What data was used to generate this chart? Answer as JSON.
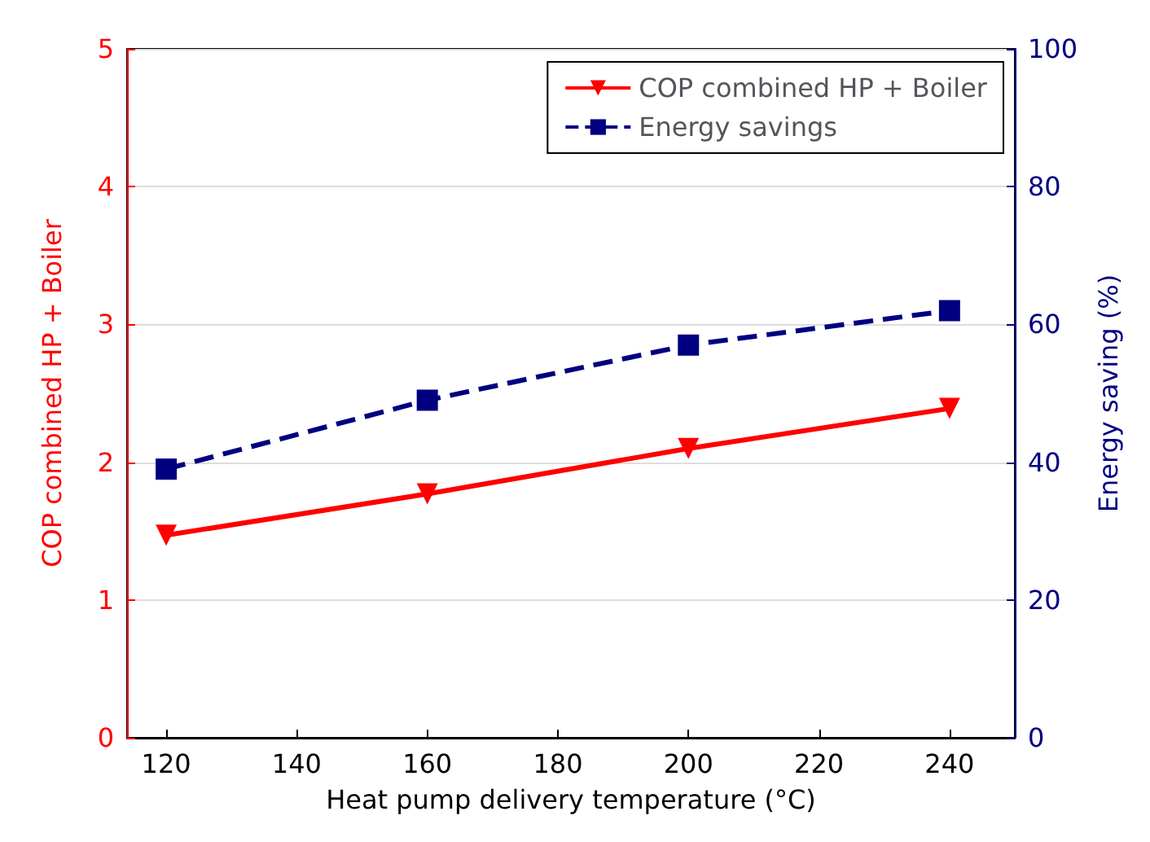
{
  "chart_data": {
    "type": "line",
    "xlabel": "Heat pump delivery temperature (°C)",
    "ylabel": "COP combined HP + Boiler",
    "y2label": "Energy saving (%)",
    "x": [
      120,
      160,
      200,
      240
    ],
    "series": [
      {
        "name": "COP combined HP + Boiler",
        "color": "#ff0000",
        "values": [
          1.47,
          1.77,
          2.1,
          2.39
        ],
        "marker": "triangle-down",
        "line_style": "solid"
      },
      {
        "name": "Energy savings",
        "color": "#000080",
        "values": [
          39,
          49,
          57,
          62
        ],
        "axis": "y2",
        "marker": "square",
        "line_style": "dashed"
      }
    ],
    "xlim": [
      114,
      250
    ],
    "xticks": [
      120,
      140,
      160,
      180,
      200,
      220,
      240
    ],
    "ylim": [
      0,
      5
    ],
    "yticks": [
      0,
      1,
      2,
      3,
      4,
      5
    ],
    "y2lim": [
      0,
      100
    ],
    "y2ticks": [
      0,
      20,
      40,
      60,
      80,
      100
    ],
    "grid": "y",
    "legend": "top right"
  }
}
